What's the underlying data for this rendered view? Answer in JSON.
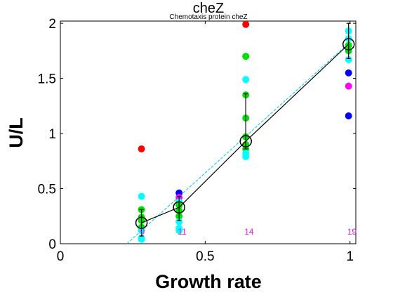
{
  "chart_data": {
    "type": "scatter",
    "title": "cheZ",
    "subtitle": "Chemotaxis protein cheZ",
    "xlabel": "Growth rate",
    "ylabel": "U/L",
    "xlim": [
      0,
      1.02
    ],
    "ylim": [
      0,
      2.02
    ],
    "xticks": [
      0,
      0.5,
      1
    ],
    "xtick_labels": [
      "0",
      "0.5",
      "1"
    ],
    "yticks": [
      0,
      0.5,
      1,
      1.5,
      2
    ],
    "ytick_labels": [
      "0",
      "0.5",
      "1",
      "1.5",
      "2"
    ],
    "grid": false,
    "colors": {
      "red": "#ff0000",
      "green": "#00e000",
      "cyan": "#00ffff",
      "blue": "#0000ff",
      "magenta": "#ff00ff",
      "mean_line": "#000000",
      "fit_line": "#00cccc",
      "count_label": "#e020e0"
    },
    "points": [
      {
        "x": 0.28,
        "y": 0.86,
        "color": "red"
      },
      {
        "x": 0.28,
        "y": 0.43,
        "color": "cyan"
      },
      {
        "x": 0.28,
        "y": 0.31,
        "color": "green"
      },
      {
        "x": 0.28,
        "y": 0.24,
        "color": "green"
      },
      {
        "x": 0.28,
        "y": 0.21,
        "color": "green"
      },
      {
        "x": 0.28,
        "y": 0.15,
        "color": "green"
      },
      {
        "x": 0.28,
        "y": 0.12,
        "color": "cyan"
      },
      {
        "x": 0.28,
        "y": 0.05,
        "color": "cyan"
      },
      {
        "x": 0.28,
        "y": 0.04,
        "color": "cyan"
      },
      {
        "x": 0.41,
        "y": 0.46,
        "color": "blue"
      },
      {
        "x": 0.41,
        "y": 0.42,
        "color": "magenta"
      },
      {
        "x": 0.41,
        "y": 0.38,
        "color": "cyan"
      },
      {
        "x": 0.41,
        "y": 0.35,
        "color": "green"
      },
      {
        "x": 0.41,
        "y": 0.3,
        "color": "green"
      },
      {
        "x": 0.41,
        "y": 0.25,
        "color": "green"
      },
      {
        "x": 0.41,
        "y": 0.2,
        "color": "cyan"
      },
      {
        "x": 0.41,
        "y": 0.14,
        "color": "cyan"
      },
      {
        "x": 0.41,
        "y": 0.12,
        "color": "cyan"
      },
      {
        "x": 0.64,
        "y": 1.99,
        "color": "red"
      },
      {
        "x": 0.64,
        "y": 1.7,
        "color": "green"
      },
      {
        "x": 0.64,
        "y": 1.49,
        "color": "cyan"
      },
      {
        "x": 0.64,
        "y": 1.35,
        "color": "green"
      },
      {
        "x": 0.64,
        "y": 1.14,
        "color": "green"
      },
      {
        "x": 0.64,
        "y": 0.97,
        "color": "green"
      },
      {
        "x": 0.64,
        "y": 0.9,
        "color": "green"
      },
      {
        "x": 0.64,
        "y": 0.86,
        "color": "green"
      },
      {
        "x": 0.64,
        "y": 0.82,
        "color": "cyan"
      },
      {
        "x": 0.64,
        "y": 0.79,
        "color": "cyan"
      },
      {
        "x": 0.995,
        "y": 1.93,
        "color": "cyan"
      },
      {
        "x": 0.995,
        "y": 1.86,
        "color": "cyan"
      },
      {
        "x": 0.995,
        "y": 1.8,
        "color": "green"
      },
      {
        "x": 0.995,
        "y": 1.75,
        "color": "green"
      },
      {
        "x": 0.995,
        "y": 1.67,
        "color": "cyan"
      },
      {
        "x": 0.995,
        "y": 1.55,
        "color": "blue"
      },
      {
        "x": 0.995,
        "y": 1.43,
        "color": "magenta"
      },
      {
        "x": 0.995,
        "y": 1.16,
        "color": "blue"
      }
    ],
    "means": [
      {
        "x": 0.28,
        "y": 0.19,
        "err_low": 0.07,
        "err_high": 0.31
      },
      {
        "x": 0.41,
        "y": 0.33,
        "err_low": 0.21,
        "err_high": 0.43
      },
      {
        "x": 0.64,
        "y": 0.93,
        "err_low": 0.86,
        "err_high": 1.36
      },
      {
        "x": 0.995,
        "y": 1.81,
        "err_low": 1.68,
        "err_high": 2.0
      }
    ],
    "fit_line": [
      {
        "x": 0.23,
        "y": 0.0
      },
      {
        "x": 1.0,
        "y": 1.83
      }
    ],
    "counts": [
      {
        "x": 0.28,
        "label": "9"
      },
      {
        "x": 0.41,
        "label": "11"
      },
      {
        "x": 0.64,
        "label": "14"
      },
      {
        "x": 0.995,
        "label": "19"
      }
    ]
  }
}
